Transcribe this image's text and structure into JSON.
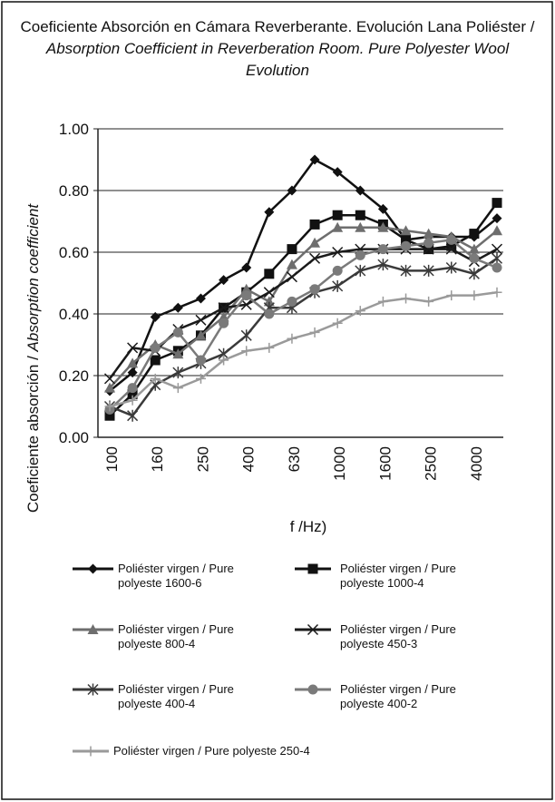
{
  "chart_data": {
    "type": "line",
    "title": {
      "es": "Coeficiente Absorción en Cámara Reverberante. Evolución Lana Poliéster /",
      "en": "Absorption Coefficient in Reverberation Room. Pure Polyester Wool Evolution"
    },
    "y_label": {
      "es": "Coeficiente absorción /",
      "en": "Absorption coefficient"
    },
    "x_label": "f /Hz)",
    "categories": [
      "100",
      null,
      "160",
      null,
      "250",
      null,
      "400",
      null,
      "630",
      null,
      "1000",
      null,
      "1600",
      null,
      "2500",
      null,
      "4000",
      null
    ],
    "ylim": [
      0,
      1
    ],
    "yticks": [
      {
        "value": 0,
        "label": "0.00"
      },
      {
        "value": 0.2,
        "label": "0.20"
      },
      {
        "value": 0.4,
        "label": "0.40"
      },
      {
        "value": 0.6,
        "label": "0.60"
      },
      {
        "value": 0.8,
        "label": "0.80"
      },
      {
        "value": 1,
        "label": "1.00"
      }
    ],
    "grid": true,
    "series": [
      {
        "name": "Poliéster virgen / Pure polyeste 1600-6",
        "color": "#111111",
        "marker": "diamond",
        "values": [
          0.15,
          0.21,
          0.39,
          0.42,
          0.45,
          0.51,
          0.55,
          0.73,
          0.8,
          0.9,
          0.86,
          0.8,
          0.74,
          0.64,
          0.65,
          0.65,
          0.65,
          0.71
        ]
      },
      {
        "name": "Poliéster virgen / Pure polyeste 1000-4",
        "color": "#111111",
        "marker": "square",
        "values": [
          0.07,
          0.14,
          0.25,
          0.28,
          0.33,
          0.42,
          0.47,
          0.53,
          0.61,
          0.69,
          0.72,
          0.72,
          0.69,
          0.64,
          0.61,
          0.62,
          0.66,
          0.76
        ]
      },
      {
        "name": "Poliéster virgen / Pure polyeste 800-4",
        "color": "#6e6e6e",
        "marker": "triangle",
        "values": [
          0.16,
          0.24,
          0.3,
          0.27,
          0.33,
          0.39,
          0.48,
          0.44,
          0.56,
          0.63,
          0.68,
          0.68,
          0.68,
          0.67,
          0.66,
          0.65,
          0.61,
          0.67
        ]
      },
      {
        "name": "Poliéster virgen / Pure polyeste 450-3",
        "color": "#1a1a1a",
        "marker": "x",
        "values": [
          0.19,
          0.29,
          0.28,
          0.35,
          0.38,
          0.42,
          0.43,
          0.47,
          0.52,
          0.58,
          0.6,
          0.61,
          0.61,
          0.61,
          0.61,
          0.61,
          0.57,
          0.61
        ]
      },
      {
        "name": "Poliéster virgen / Pure polyeste 400-4",
        "color": "#3a3a3a",
        "marker": "star",
        "values": [
          0.1,
          0.07,
          0.17,
          0.21,
          0.24,
          0.27,
          0.33,
          0.42,
          0.42,
          0.47,
          0.49,
          0.54,
          0.56,
          0.54,
          0.54,
          0.55,
          0.53,
          0.58
        ]
      },
      {
        "name": "Poliéster virgen / Pure polyeste 400-2",
        "color": "#7a7a7a",
        "marker": "circle",
        "values": [
          0.09,
          0.16,
          0.29,
          0.34,
          0.25,
          0.37,
          0.46,
          0.4,
          0.44,
          0.48,
          0.54,
          0.59,
          0.61,
          0.62,
          0.63,
          0.64,
          0.58,
          0.55
        ]
      },
      {
        "name": "Poliéster virgen / Pure polyeste 250-4",
        "color": "#9a9a9a",
        "marker": "plus",
        "values": [
          0.1,
          0.12,
          0.19,
          0.16,
          0.19,
          0.25,
          0.28,
          0.29,
          0.32,
          0.34,
          0.37,
          0.41,
          0.44,
          0.45,
          0.44,
          0.46,
          0.46,
          0.47
        ]
      }
    ]
  }
}
